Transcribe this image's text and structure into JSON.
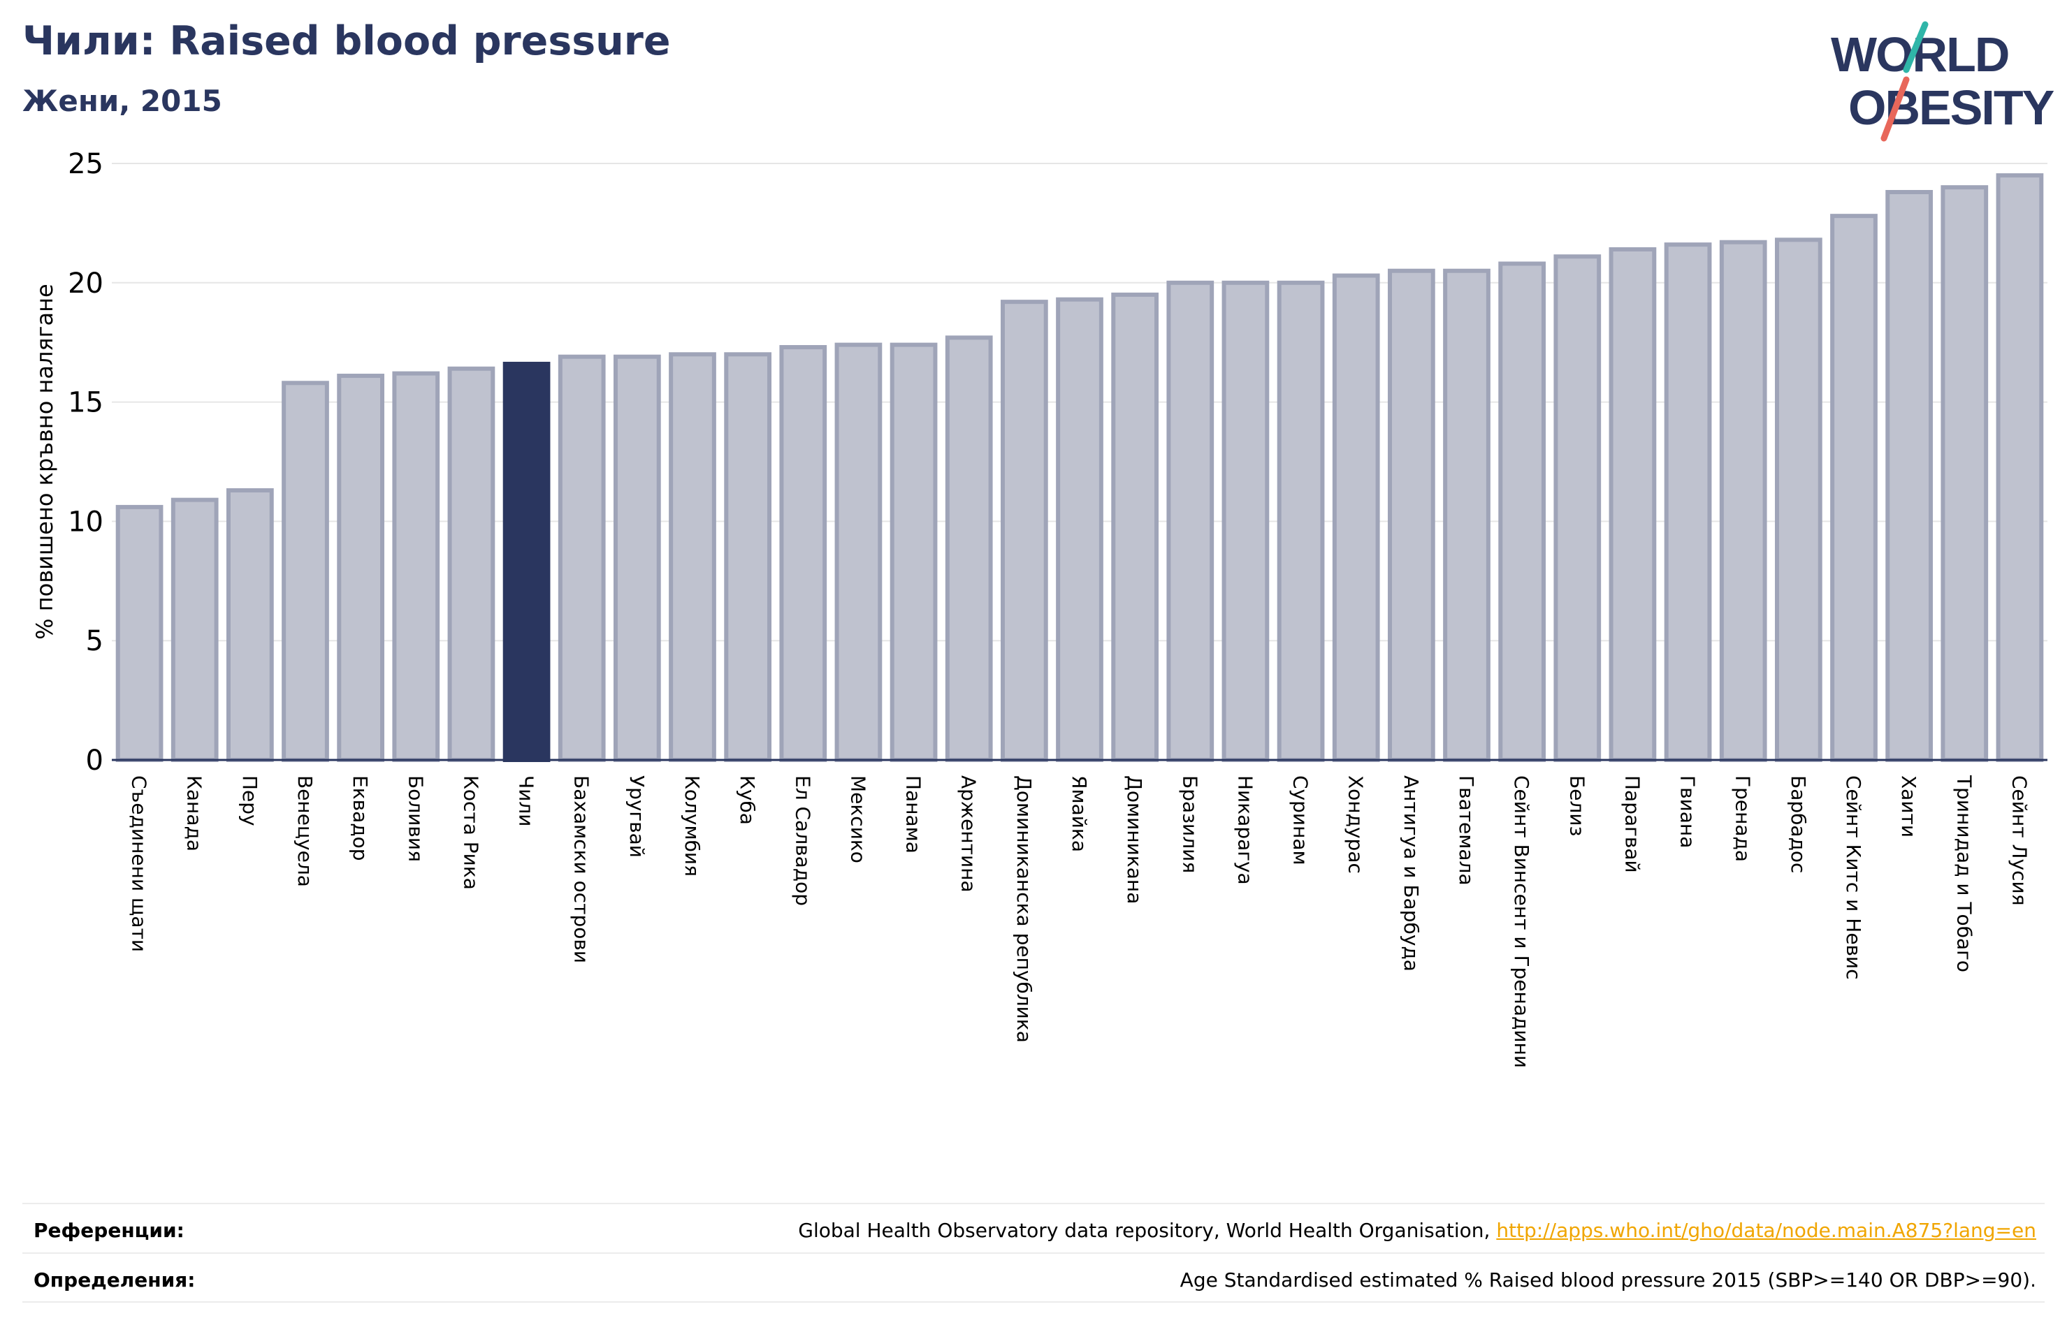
{
  "title": "Чили: Raised blood pressure",
  "subtitle": "Жени, 2015",
  "logo": {
    "line1": "WORLD",
    "line2": "OBESITY"
  },
  "colors": {
    "bar_default": "#bfc2cf",
    "bar_border": "#9fa4b8",
    "bar_highlight": "#2a365f",
    "title": "#2a365f",
    "link": "#f0a500",
    "logo_teal": "#2fb5a8",
    "logo_red": "#e8675a"
  },
  "chart_data": {
    "type": "bar",
    "ylabel": "% повишено кръвно налягане",
    "ylim": [
      0,
      25
    ],
    "yticks": [
      0,
      5,
      10,
      15,
      20,
      25
    ],
    "highlight": "Чили",
    "grid": true,
    "categories": [
      "Съединени щати",
      "Канада",
      "Перу",
      "Венецуела",
      "Еквадор",
      "Боливия",
      "Коста Рика",
      "Чили",
      "Бахамски острови",
      "Уругвай",
      "Колумбия",
      "Куба",
      "Ел Салвадор",
      "Мексико",
      "Панама",
      "Аржентина",
      "Доминиканска република",
      "Ямайка",
      "Доминикана",
      "Бразилия",
      "Никарагуа",
      "Суринам",
      "Хондурас",
      "Антигуа и Барбуда",
      "Гватемала",
      "Сейнт Винсент и Гренадини",
      "Белиз",
      "Парагвай",
      "Гвиана",
      "Гренада",
      "Барбадос",
      "Сейнт Китс и Невис",
      "Хаити",
      "Тринидад и Тобаго",
      "Сейнт Лусия"
    ],
    "values": [
      10.6,
      10.9,
      11.3,
      15.8,
      16.1,
      16.2,
      16.4,
      16.6,
      16.9,
      16.9,
      17.0,
      17.0,
      17.3,
      17.4,
      17.4,
      17.7,
      19.2,
      19.3,
      19.5,
      20.0,
      20.0,
      20.0,
      20.3,
      20.5,
      20.5,
      20.8,
      21.1,
      21.4,
      21.6,
      21.7,
      21.8,
      22.8,
      23.8,
      24.0,
      24.5
    ]
  },
  "footer": {
    "references_label": "Референции:",
    "references_text": "Global Health Observatory data repository, World Health Organisation, ",
    "references_link": "http://apps.who.int/gho/data/node.main.A875?lang=en",
    "definitions_label": "Определения:",
    "definitions_text": "Age Standardised estimated % Raised blood pressure 2015 (SBP>=140 OR DBP>=90)."
  }
}
